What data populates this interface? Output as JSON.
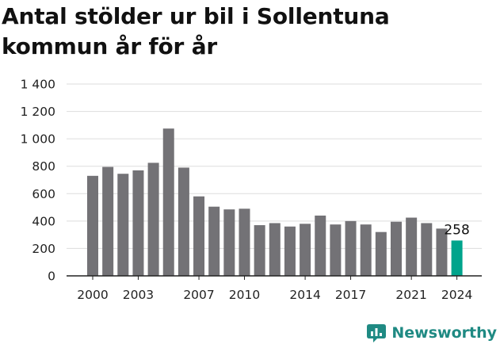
{
  "colors": {
    "bar": "#737276",
    "highlight": "#00a48c",
    "grid": "#dddddd",
    "axis": "#222222",
    "brand": "#1f8a83"
  },
  "brand": {
    "name": "Newsworthy",
    "icon": "newsworthy-logo-icon"
  },
  "chart_data": {
    "type": "bar",
    "title": "Antal stölder ur bil i Sollentuna kommun år för år",
    "xlabel": "",
    "ylabel": "",
    "categories": [
      "2000",
      "2001",
      "2002",
      "2003",
      "2004",
      "2005",
      "2006",
      "2007",
      "2008",
      "2009",
      "2010",
      "2011",
      "2012",
      "2013",
      "2014",
      "2015",
      "2016",
      "2017",
      "2018",
      "2019",
      "2020",
      "2021",
      "2022",
      "2023",
      "2024"
    ],
    "values": [
      730,
      795,
      745,
      770,
      825,
      1075,
      790,
      580,
      505,
      485,
      490,
      370,
      385,
      360,
      380,
      440,
      375,
      400,
      375,
      320,
      395,
      425,
      385,
      345,
      258
    ],
    "highlight_index": 24,
    "data_labels": [
      {
        "index": 24,
        "text": "258"
      }
    ],
    "x_tick_labels": [
      "2000",
      "2003",
      "2007",
      "2010",
      "2014",
      "2017",
      "2021",
      "2024"
    ],
    "y_tick_labels": [
      "0",
      "200",
      "400",
      "600",
      "800",
      "1 000",
      "1 200",
      "1 400"
    ],
    "y_ticks": [
      0,
      200,
      400,
      600,
      800,
      1000,
      1200,
      1400
    ],
    "ylim": [
      0,
      1400
    ],
    "grid": true,
    "legend": "none"
  }
}
